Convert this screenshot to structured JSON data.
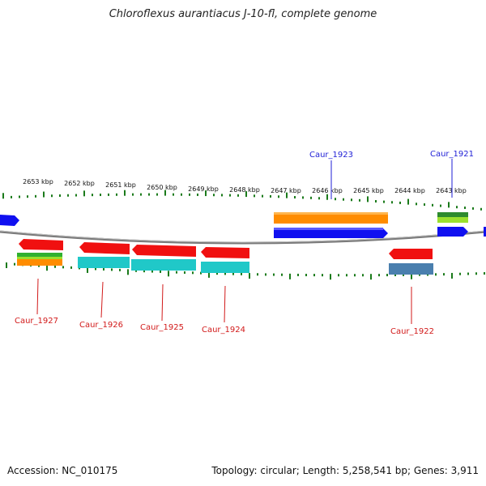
{
  "title": "Chloroflexus aurantiacus J-10-fl, complete genome",
  "footer": {
    "accession": "Accession: NC_010175",
    "summary": "Topology: circular; Length: 5,258,541 bp; Genes: 3,911"
  },
  "scale_labels": [
    "2653 kbp",
    "2652 kbp",
    "2651 kbp",
    "2650 kbp",
    "2649 kbp",
    "2648 kbp",
    "2647 kbp",
    "2646 kbp",
    "2645 kbp",
    "2644 kbp",
    "2643 kbp"
  ],
  "genes_top": [
    {
      "name": "Caur_1923"
    },
    {
      "name": "Caur_1921"
    }
  ],
  "genes_bottom": [
    {
      "name": "Caur_1927"
    },
    {
      "name": "Caur_1926"
    },
    {
      "name": "Caur_1925"
    },
    {
      "name": "Caur_1924"
    },
    {
      "name": "Caur_1922"
    }
  ],
  "colors": {
    "cds_forward": "#1010f0",
    "cds_reverse": "#f01010",
    "orange": "#ff8c00",
    "teal": "#20c8c8",
    "steel": "#4a7fae",
    "green": "#30b030",
    "lime": "#90e030",
    "tick": "#1a7a1a",
    "backbone": "#888888"
  }
}
